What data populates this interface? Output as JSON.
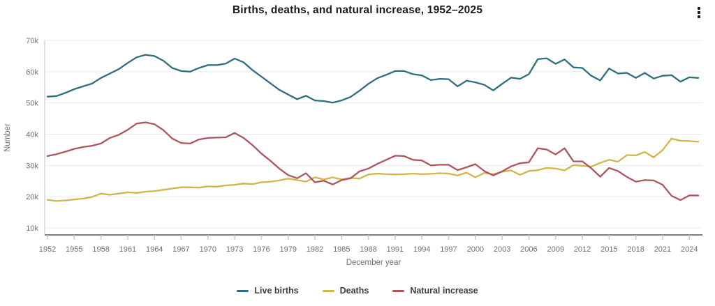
{
  "header": {
    "title": "Births, deaths, and natural increase, 1952–2025",
    "menu_icon": "kebab-menu"
  },
  "chart_data": {
    "type": "line",
    "title": "Births, deaths, and natural increase, 1952–2025",
    "xlabel": "December year",
    "ylabel": "Number",
    "grid": "horizontal",
    "legend_position": "bottom",
    "x_start": 1952,
    "x_end": 2025,
    "x_ticks": [
      1952,
      1955,
      1958,
      1961,
      1964,
      1967,
      1970,
      1973,
      1976,
      1979,
      1982,
      1985,
      1988,
      1991,
      1994,
      1997,
      2000,
      2003,
      2006,
      2009,
      2012,
      2015,
      2018,
      2021,
      2024
    ],
    "ylim": [
      10,
      70
    ],
    "value_unit": "thousands",
    "y_ticks": [
      {
        "label": "10k",
        "value": 10
      },
      {
        "label": "20k",
        "value": 20
      },
      {
        "label": "30k",
        "value": 30
      },
      {
        "label": "40k",
        "value": 40
      },
      {
        "label": "50k",
        "value": 50
      },
      {
        "label": "60k",
        "value": 60
      },
      {
        "label": "70k",
        "value": 70
      }
    ],
    "series": [
      {
        "name": "Live births",
        "color": "#2c6e7f",
        "values": [
          52.0,
          52.2,
          53.2,
          54.4,
          55.3,
          56.2,
          58.0,
          59.4,
          60.8,
          62.8,
          64.6,
          65.4,
          65.0,
          63.5,
          61.2,
          60.2,
          60.0,
          61.2,
          62.1,
          62.1,
          62.6,
          64.2,
          63.0,
          60.5,
          58.4,
          56.3,
          54.2,
          52.7,
          51.2,
          52.3,
          50.8,
          50.6,
          50.1,
          50.8,
          51.9,
          53.9,
          56.1,
          57.9,
          59.0,
          60.2,
          60.2,
          59.2,
          58.8,
          57.3,
          57.7,
          57.6,
          55.3,
          57.1,
          56.6,
          55.8,
          54.0,
          56.1,
          58.1,
          57.7,
          59.2,
          64.0,
          64.3,
          62.5,
          63.9,
          61.4,
          61.2,
          58.7,
          57.2,
          61.0,
          59.4,
          59.6,
          58.0,
          59.6,
          57.8,
          58.7,
          58.9,
          56.8,
          58.2,
          58.0
        ]
      },
      {
        "name": "Deaths",
        "color": "#d2b44a",
        "values": [
          19.0,
          18.6,
          18.8,
          19.1,
          19.4,
          19.9,
          21.0,
          20.6,
          21.0,
          21.4,
          21.2,
          21.6,
          21.8,
          22.2,
          22.6,
          23.0,
          23.0,
          22.9,
          23.3,
          23.2,
          23.6,
          23.8,
          24.2,
          24.0,
          24.6,
          24.8,
          25.2,
          25.8,
          25.3,
          24.8,
          26.2,
          25.5,
          26.2,
          25.5,
          26.0,
          25.8,
          27.1,
          27.4,
          27.2,
          27.1,
          27.2,
          27.4,
          27.2,
          27.3,
          27.5,
          27.4,
          26.8,
          27.7,
          26.2,
          27.6,
          27.2,
          28.0,
          28.4,
          27.0,
          28.2,
          28.5,
          29.2,
          29.0,
          28.4,
          30.1,
          29.9,
          29.6,
          30.8,
          31.8,
          31.2,
          33.3,
          33.2,
          34.3,
          32.6,
          34.9,
          38.6,
          37.9,
          37.8,
          37.6
        ]
      },
      {
        "name": "Natural increase",
        "color": "#ad545d",
        "values": [
          33.0,
          33.6,
          34.4,
          35.3,
          35.9,
          36.3,
          37.0,
          38.8,
          39.8,
          41.4,
          43.4,
          43.8,
          43.2,
          41.3,
          38.6,
          37.2,
          37.0,
          38.3,
          38.8,
          38.9,
          39.0,
          40.4,
          38.8,
          36.5,
          33.8,
          31.5,
          29.0,
          26.9,
          25.9,
          27.5,
          24.6,
          25.1,
          23.9,
          25.3,
          25.9,
          28.1,
          29.0,
          30.5,
          31.8,
          33.1,
          33.0,
          31.8,
          31.6,
          30.0,
          30.2,
          30.2,
          28.5,
          29.4,
          30.4,
          28.2,
          26.8,
          28.1,
          29.7,
          30.7,
          31.0,
          35.5,
          35.1,
          33.5,
          35.5,
          31.3,
          31.3,
          29.1,
          26.4,
          29.2,
          28.2,
          26.3,
          24.8,
          25.3,
          25.2,
          23.8,
          20.3,
          18.9,
          20.4,
          20.4
        ]
      }
    ]
  },
  "legend": {
    "items": [
      {
        "label": "Live births",
        "color": "#2c6e7f"
      },
      {
        "label": "Deaths",
        "color": "#d2b44a"
      },
      {
        "label": "Natural increase",
        "color": "#ad545d"
      }
    ]
  }
}
